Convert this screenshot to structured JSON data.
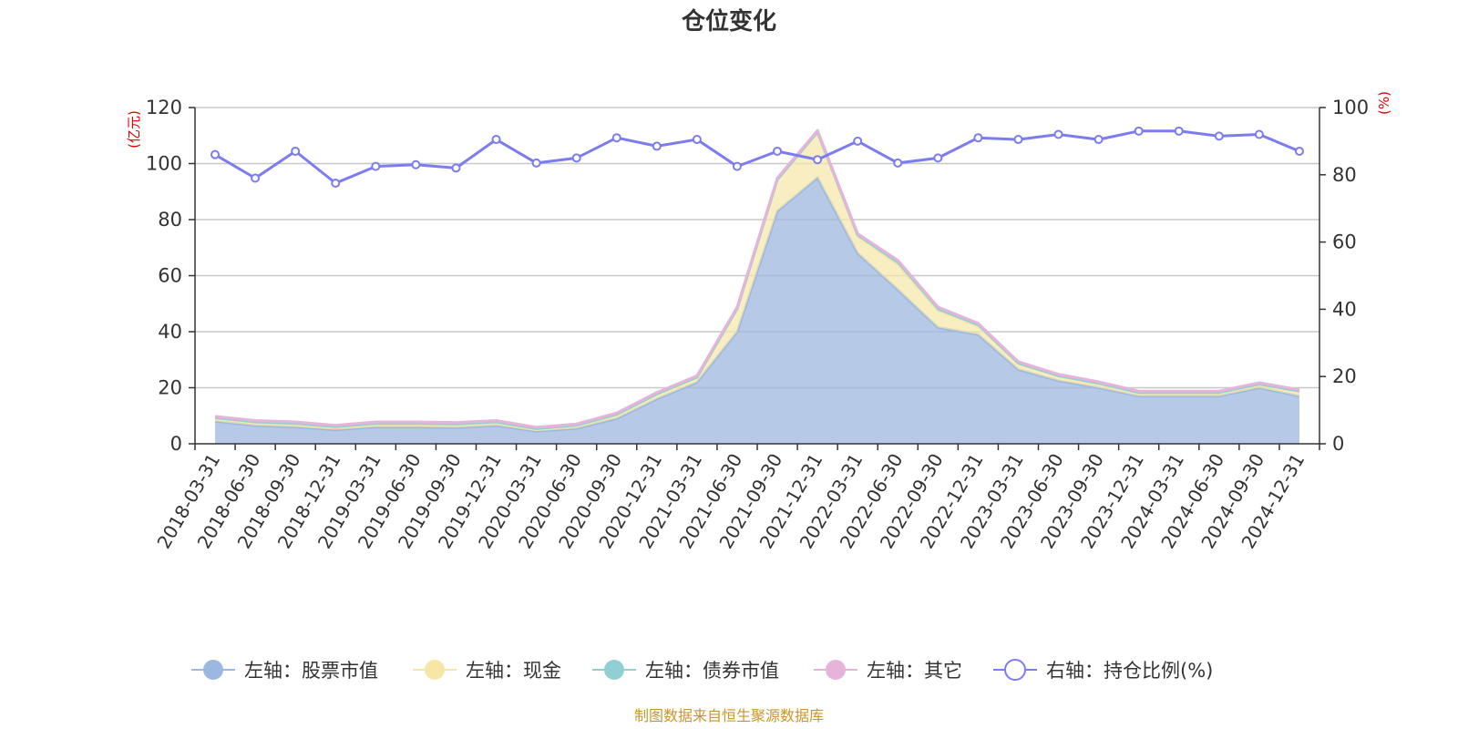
{
  "chart_data": {
    "type": "area",
    "title": "仓位变化",
    "left_axis_unit": "(亿元)",
    "right_axis_unit": "(%)",
    "left_ylim": [
      0,
      120
    ],
    "left_ticks": [
      0,
      20,
      40,
      60,
      80,
      100,
      120
    ],
    "right_ylim": [
      0,
      100
    ],
    "right_ticks": [
      0,
      20,
      40,
      60,
      80,
      100
    ],
    "categories": [
      "2018-03-31",
      "2018-06-30",
      "2018-09-30",
      "2018-12-31",
      "2019-03-31",
      "2019-06-30",
      "2019-09-30",
      "2019-12-31",
      "2020-03-31",
      "2020-06-30",
      "2020-09-30",
      "2020-12-31",
      "2021-03-31",
      "2021-06-30",
      "2021-09-30",
      "2021-12-31",
      "2022-03-31",
      "2022-06-30",
      "2022-09-30",
      "2022-12-31",
      "2023-03-31",
      "2023-06-30",
      "2023-09-30",
      "2023-12-31",
      "2024-03-31",
      "2024-06-30",
      "2024-09-30",
      "2024-12-31"
    ],
    "series": [
      {
        "name": "左轴：股票市值",
        "axis": "left",
        "color": "#9db8e0",
        "values": [
          8,
          6.5,
          6,
          5,
          6,
          6,
          5.8,
          6.5,
          4.5,
          5.5,
          9,
          16,
          22,
          40,
          83,
          95,
          68,
          55,
          41.5,
          39,
          26.5,
          22.5,
          20,
          17,
          17,
          17,
          20,
          17
        ]
      },
      {
        "name": "左轴：现金",
        "axis": "left",
        "color": "#f7e7a6",
        "values": [
          1,
          1,
          1,
          0.8,
          1,
          1,
          1,
          1,
          0.6,
          0.8,
          1.2,
          1.5,
          1.5,
          8,
          11,
          16,
          6,
          9,
          6,
          3,
          2,
          1.5,
          1.3,
          1,
          1,
          1,
          1,
          1.5
        ]
      },
      {
        "name": "左轴：债券市值",
        "axis": "left",
        "color": "#90d0d5",
        "values": [
          0.3,
          0.3,
          0.3,
          0.3,
          0.3,
          0.3,
          0.3,
          0.3,
          0.3,
          0.3,
          0.3,
          0.3,
          0.3,
          0.3,
          0.3,
          0.3,
          0.5,
          1,
          0.8,
          0.5,
          0.3,
          0.3,
          0.3,
          0.3,
          0.3,
          0.3,
          0.3,
          0.3
        ]
      },
      {
        "name": "左轴：其它",
        "axis": "left",
        "color": "#e6b4da",
        "values": [
          0.5,
          0.5,
          0.5,
          0.5,
          0.5,
          0.5,
          0.5,
          0.5,
          0.5,
          0.5,
          0.5,
          0.5,
          0.5,
          0.5,
          0.5,
          0.5,
          0.5,
          0.5,
          0.5,
          0.5,
          0.5,
          0.5,
          0.5,
          0.5,
          0.5,
          0.5,
          0.5,
          0.5
        ]
      },
      {
        "name": "右轴：持仓比例(%)",
        "axis": "right",
        "color": "#7b7cf0",
        "values": [
          86,
          79,
          87,
          77.5,
          82.5,
          83,
          82,
          90.5,
          83.5,
          85,
          91,
          88.5,
          90.5,
          82.5,
          87,
          84.5,
          90,
          83.5,
          85,
          91,
          90.5,
          92,
          90.5,
          93,
          93,
          91.5,
          92,
          87
        ]
      }
    ],
    "legend_position": "bottom"
  },
  "source_note": "制图数据来自恒生聚源数据库"
}
